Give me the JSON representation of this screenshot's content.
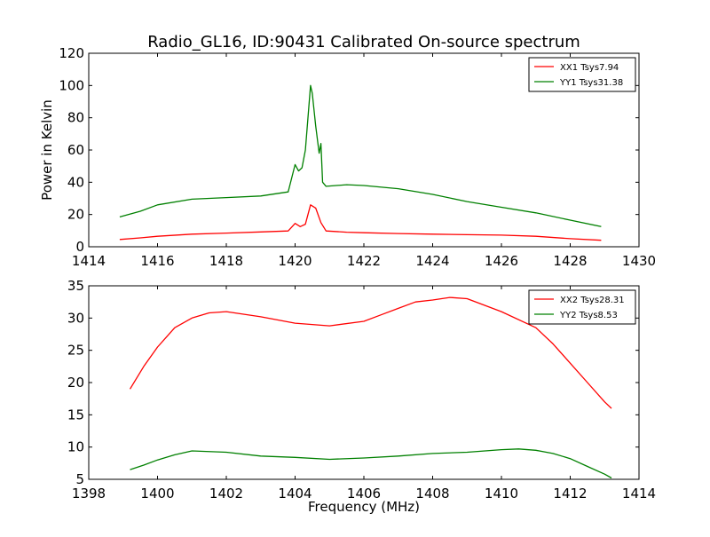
{
  "title": "Radio_GL16, ID:90431 Calibrated On-source spectrum",
  "ylabel": "Power in Kelvin",
  "xlabel": "Frequency (MHz)",
  "colors": {
    "red": "#ff0000",
    "green": "#008000"
  },
  "chart_data": [
    {
      "type": "line",
      "xlim": [
        1414,
        1430
      ],
      "ylim": [
        0,
        120
      ],
      "xticks": [
        1414,
        1416,
        1418,
        1420,
        1422,
        1424,
        1426,
        1428,
        1430
      ],
      "yticks": [
        0,
        20,
        40,
        60,
        80,
        100,
        120
      ],
      "legend_position": "top-right",
      "series": [
        {
          "name": "XX1 Tsys7.94",
          "color": "#ff0000",
          "x": [
            1414.9,
            1415.5,
            1416.0,
            1417.0,
            1418.0,
            1419.0,
            1419.8,
            1420.0,
            1420.15,
            1420.3,
            1420.45,
            1420.6,
            1420.75,
            1420.9,
            1421.5,
            1422.0,
            1423.0,
            1424.0,
            1425.0,
            1426.0,
            1427.0,
            1428.0,
            1428.9
          ],
          "y": [
            4.5,
            5.5,
            6.5,
            7.8,
            8.5,
            9.2,
            9.8,
            14.5,
            12.5,
            14.0,
            26.0,
            24.0,
            15.0,
            9.8,
            9.0,
            8.7,
            8.2,
            7.8,
            7.5,
            7.2,
            6.5,
            5.0,
            4.0
          ]
        },
        {
          "name": "YY1 Tsys31.38",
          "color": "#008000",
          "x": [
            1414.9,
            1415.5,
            1416.0,
            1417.0,
            1418.0,
            1419.0,
            1419.8,
            1420.0,
            1420.1,
            1420.2,
            1420.3,
            1420.45,
            1420.5,
            1420.6,
            1420.7,
            1420.75,
            1420.8,
            1420.9,
            1421.5,
            1422.0,
            1423.0,
            1424.0,
            1425.0,
            1426.0,
            1427.0,
            1428.0,
            1428.9
          ],
          "y": [
            18.5,
            22.0,
            26.0,
            29.5,
            30.5,
            31.5,
            34.0,
            51.0,
            47.0,
            49.0,
            60.0,
            100.0,
            95.0,
            75.0,
            58.0,
            64.0,
            40.0,
            37.5,
            38.5,
            38.0,
            36.0,
            32.5,
            28.0,
            24.5,
            21.0,
            16.5,
            12.5
          ]
        }
      ]
    },
    {
      "type": "line",
      "xlim": [
        1398,
        1414
      ],
      "ylim": [
        5,
        35
      ],
      "xticks": [
        1398,
        1400,
        1402,
        1404,
        1406,
        1408,
        1410,
        1412,
        1414
      ],
      "yticks": [
        5,
        10,
        15,
        20,
        25,
        30,
        35
      ],
      "legend_position": "top-right",
      "series": [
        {
          "name": "XX2 Tsys28.31",
          "color": "#ff0000",
          "x": [
            1399.2,
            1399.6,
            1400.0,
            1400.5,
            1401.0,
            1401.5,
            1402.0,
            1403.0,
            1404.0,
            1405.0,
            1406.0,
            1406.5,
            1407.0,
            1407.5,
            1408.0,
            1408.5,
            1409.0,
            1410.0,
            1411.0,
            1411.5,
            1412.0,
            1412.5,
            1413.0,
            1413.2
          ],
          "y": [
            19.0,
            22.5,
            25.5,
            28.5,
            30.0,
            30.8,
            31.0,
            30.2,
            29.2,
            28.8,
            29.5,
            30.5,
            31.5,
            32.5,
            32.8,
            33.2,
            33.0,
            31.0,
            28.5,
            26.0,
            23.0,
            20.0,
            17.0,
            16.0
          ]
        },
        {
          "name": "YY2 Tsys8.53",
          "color": "#008000",
          "x": [
            1399.2,
            1399.6,
            1400.0,
            1400.5,
            1401.0,
            1402.0,
            1403.0,
            1404.0,
            1405.0,
            1406.0,
            1407.0,
            1408.0,
            1409.0,
            1410.0,
            1410.5,
            1411.0,
            1411.5,
            1412.0,
            1412.5,
            1413.0,
            1413.2
          ],
          "y": [
            6.5,
            7.2,
            8.0,
            8.8,
            9.4,
            9.2,
            8.6,
            8.4,
            8.1,
            8.3,
            8.6,
            9.0,
            9.2,
            9.6,
            9.7,
            9.5,
            9.0,
            8.2,
            7.0,
            5.8,
            5.2
          ]
        }
      ]
    }
  ]
}
